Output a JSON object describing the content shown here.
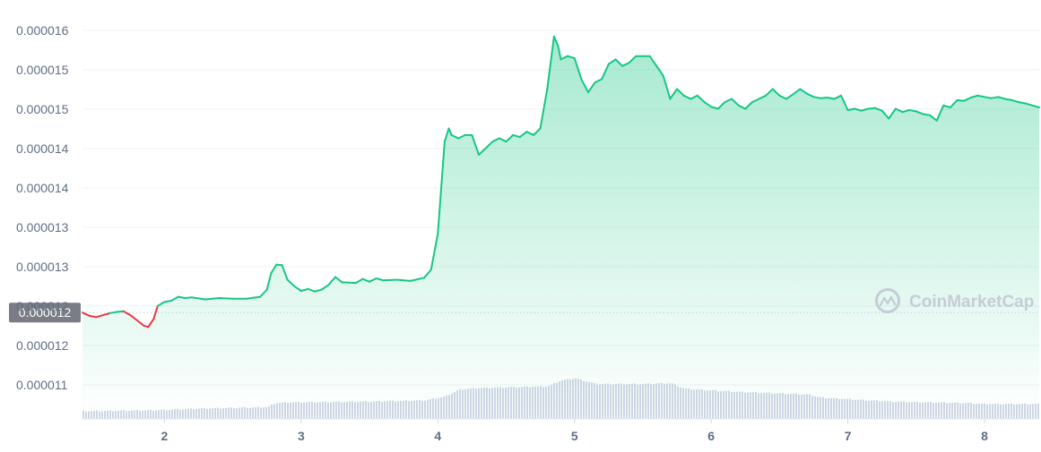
{
  "chart_data": {
    "type": "area",
    "title": "",
    "xlabel": "",
    "ylabel": "",
    "x_ticks": [
      "2",
      "3",
      "4",
      "5",
      "6",
      "7",
      "8"
    ],
    "y_tick_labels": [
      "0.000016",
      "0.000015",
      "0.000015",
      "0.000014",
      "0.000014",
      "0.000013",
      "0.000013",
      "0.000012",
      "0.000012",
      "0.000011"
    ],
    "ylim": [
      1.07e-05,
      1.62e-05
    ],
    "xlim": [
      1.4,
      8.4
    ],
    "baseline": {
      "value": 1.18e-05,
      "label": "0.000012"
    },
    "grid": true,
    "colors": {
      "up": "#16c784",
      "down": "#ea3943",
      "volume": "#cfd6e4",
      "baseline_label_bg": "#7a7d85"
    },
    "series": [
      {
        "values": [
          [
            1.4,
            1.18e-05
          ],
          [
            1.45,
            1.175e-05
          ],
          [
            1.5,
            1.173e-05
          ],
          [
            1.55,
            1.176e-05
          ],
          [
            1.6,
            1.179e-05
          ],
          [
            1.65,
            1.181e-05
          ],
          [
            1.7,
            1.182e-05
          ],
          [
            1.75,
            1.176e-05
          ],
          [
            1.8,
            1.168e-05
          ],
          [
            1.85,
            1.16e-05
          ],
          [
            1.88,
            1.158e-05
          ],
          [
            1.92,
            1.17e-05
          ],
          [
            1.95,
            1.19e-05
          ],
          [
            2.0,
            1.196e-05
          ],
          [
            2.05,
            1.198e-05
          ],
          [
            2.1,
            1.204e-05
          ],
          [
            2.15,
            1.202e-05
          ],
          [
            2.2,
            1.203e-05
          ],
          [
            2.3,
            1.2e-05
          ],
          [
            2.4,
            1.202e-05
          ],
          [
            2.5,
            1.201e-05
          ],
          [
            2.6,
            1.201e-05
          ],
          [
            2.7,
            1.204e-05
          ],
          [
            2.75,
            1.215e-05
          ],
          [
            2.78,
            1.24e-05
          ],
          [
            2.82,
            1.253e-05
          ],
          [
            2.86,
            1.252e-05
          ],
          [
            2.9,
            1.23e-05
          ],
          [
            2.95,
            1.22e-05
          ],
          [
            3.0,
            1.213e-05
          ],
          [
            3.05,
            1.216e-05
          ],
          [
            3.1,
            1.212e-05
          ],
          [
            3.15,
            1.215e-05
          ],
          [
            3.2,
            1.222e-05
          ],
          [
            3.25,
            1.234e-05
          ],
          [
            3.3,
            1.226e-05
          ],
          [
            3.4,
            1.225e-05
          ],
          [
            3.45,
            1.231e-05
          ],
          [
            3.5,
            1.227e-05
          ],
          [
            3.55,
            1.232e-05
          ],
          [
            3.6,
            1.229e-05
          ],
          [
            3.7,
            1.23e-05
          ],
          [
            3.8,
            1.228e-05
          ],
          [
            3.9,
            1.233e-05
          ],
          [
            3.95,
            1.245e-05
          ],
          [
            4.0,
            1.3e-05
          ],
          [
            4.05,
            1.44e-05
          ],
          [
            4.08,
            1.46e-05
          ],
          [
            4.1,
            1.45e-05
          ],
          [
            4.15,
            1.445e-05
          ],
          [
            4.2,
            1.45e-05
          ],
          [
            4.25,
            1.45e-05
          ],
          [
            4.3,
            1.42e-05
          ],
          [
            4.35,
            1.43e-05
          ],
          [
            4.4,
            1.44e-05
          ],
          [
            4.45,
            1.445e-05
          ],
          [
            4.5,
            1.44e-05
          ],
          [
            4.55,
            1.45e-05
          ],
          [
            4.6,
            1.447e-05
          ],
          [
            4.65,
            1.455e-05
          ],
          [
            4.7,
            1.45e-05
          ],
          [
            4.75,
            1.46e-05
          ],
          [
            4.8,
            1.52e-05
          ],
          [
            4.85,
            1.6e-05
          ],
          [
            4.88,
            1.585e-05
          ],
          [
            4.9,
            1.565e-05
          ],
          [
            4.95,
            1.57e-05
          ],
          [
            5.0,
            1.567e-05
          ],
          [
            5.05,
            1.535e-05
          ],
          [
            5.1,
            1.515e-05
          ],
          [
            5.15,
            1.53e-05
          ],
          [
            5.2,
            1.535e-05
          ],
          [
            5.25,
            1.558e-05
          ],
          [
            5.3,
            1.565e-05
          ],
          [
            5.35,
            1.555e-05
          ],
          [
            5.4,
            1.56e-05
          ],
          [
            5.45,
            1.57e-05
          ],
          [
            5.5,
            1.57e-05
          ],
          [
            5.55,
            1.57e-05
          ],
          [
            5.6,
            1.555e-05
          ],
          [
            5.65,
            1.54e-05
          ],
          [
            5.7,
            1.505e-05
          ],
          [
            5.75,
            1.52e-05
          ],
          [
            5.8,
            1.51e-05
          ],
          [
            5.85,
            1.505e-05
          ],
          [
            5.9,
            1.51e-05
          ],
          [
            5.95,
            1.5e-05
          ],
          [
            6.0,
            1.493e-05
          ],
          [
            6.05,
            1.49e-05
          ],
          [
            6.1,
            1.5e-05
          ],
          [
            6.15,
            1.505e-05
          ],
          [
            6.2,
            1.495e-05
          ],
          [
            6.25,
            1.49e-05
          ],
          [
            6.3,
            1.5e-05
          ],
          [
            6.35,
            1.505e-05
          ],
          [
            6.4,
            1.51e-05
          ],
          [
            6.45,
            1.52e-05
          ],
          [
            6.5,
            1.51e-05
          ],
          [
            6.55,
            1.505e-05
          ],
          [
            6.6,
            1.512e-05
          ],
          [
            6.65,
            1.52e-05
          ],
          [
            6.7,
            1.513e-05
          ],
          [
            6.75,
            1.508e-05
          ],
          [
            6.8,
            1.506e-05
          ],
          [
            6.85,
            1.507e-05
          ],
          [
            6.9,
            1.505e-05
          ],
          [
            6.95,
            1.51e-05
          ],
          [
            7.0,
            1.488e-05
          ],
          [
            7.05,
            1.49e-05
          ],
          [
            7.1,
            1.487e-05
          ],
          [
            7.15,
            1.49e-05
          ],
          [
            7.2,
            1.491e-05
          ],
          [
            7.25,
            1.487e-05
          ],
          [
            7.3,
            1.475e-05
          ],
          [
            7.35,
            1.49e-05
          ],
          [
            7.4,
            1.485e-05
          ],
          [
            7.45,
            1.488e-05
          ],
          [
            7.5,
            1.486e-05
          ],
          [
            7.55,
            1.482e-05
          ],
          [
            7.6,
            1.48e-05
          ],
          [
            7.65,
            1.472e-05
          ],
          [
            7.7,
            1.495e-05
          ],
          [
            7.75,
            1.492e-05
          ],
          [
            7.8,
            1.503e-05
          ],
          [
            7.85,
            1.502e-05
          ],
          [
            7.9,
            1.507e-05
          ],
          [
            7.95,
            1.51e-05
          ],
          [
            8.0,
            1.508e-05
          ],
          [
            8.05,
            1.506e-05
          ],
          [
            8.1,
            1.508e-05
          ],
          [
            8.15,
            1.505e-05
          ],
          [
            8.2,
            1.503e-05
          ],
          [
            8.25,
            1.5e-05
          ],
          [
            8.3,
            1.498e-05
          ],
          [
            8.35,
            1.495e-05
          ],
          [
            8.4,
            1.492e-05
          ]
        ]
      }
    ],
    "volume": {
      "relative_levels": [
        [
          1.4,
          0.18
        ],
        [
          1.9,
          0.2
        ],
        [
          2.3,
          0.25
        ],
        [
          2.75,
          0.28
        ],
        [
          2.8,
          0.38
        ],
        [
          2.9,
          0.4
        ],
        [
          3.5,
          0.42
        ],
        [
          3.9,
          0.45
        ],
        [
          4.05,
          0.55
        ],
        [
          4.15,
          0.72
        ],
        [
          4.3,
          0.76
        ],
        [
          4.8,
          0.8
        ],
        [
          4.9,
          0.95
        ],
        [
          5.0,
          1.0
        ],
        [
          5.15,
          0.86
        ],
        [
          5.5,
          0.86
        ],
        [
          5.7,
          0.88
        ],
        [
          5.8,
          0.74
        ],
        [
          6.2,
          0.66
        ],
        [
          6.7,
          0.6
        ],
        [
          6.8,
          0.52
        ],
        [
          7.3,
          0.42
        ],
        [
          7.9,
          0.38
        ],
        [
          8.0,
          0.36
        ],
        [
          8.4,
          0.36
        ]
      ]
    },
    "watermark": "CoinMarketCap"
  }
}
